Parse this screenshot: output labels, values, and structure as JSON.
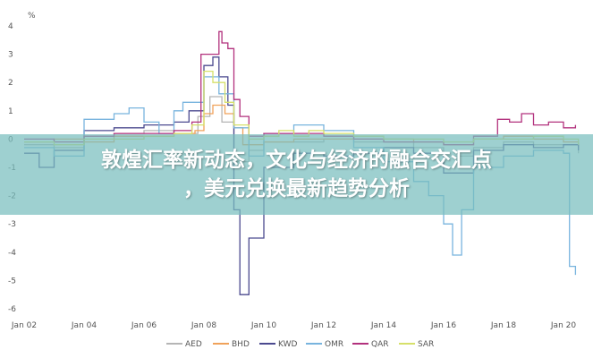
{
  "chart_data": {
    "type": "line",
    "ylabel": "%",
    "ylim": [
      -6,
      4
    ],
    "yticks": [
      4,
      3,
      2,
      1,
      0,
      -1,
      -2,
      -3,
      -4,
      -5,
      -6
    ],
    "xlim": [
      "2002-01",
      "2020-07"
    ],
    "xticks": [
      "Jan 02",
      "Jan 04",
      "Jan 06",
      "Jan 08",
      "Jan 10",
      "Jan 12",
      "Jan 14",
      "Jan 16",
      "Jan 18",
      "Jan 20"
    ],
    "xtick_years": [
      2002,
      2004,
      2006,
      2008,
      2010,
      2012,
      2014,
      2016,
      2018,
      2020
    ],
    "grid": false,
    "legend_position": "bottom",
    "series": [
      {
        "name": "AED",
        "color": "#b5b5b5",
        "x": [
          2002,
          2003,
          2004,
          2005,
          2006,
          2007,
          2007.8,
          2008.2,
          2008.6,
          2009,
          2009.5,
          2010,
          2011,
          2012,
          2013,
          2014,
          2015,
          2016,
          2017,
          2018,
          2019,
          2020,
          2020.5
        ],
        "y": [
          -0.2,
          -0.3,
          0.1,
          0.2,
          0.3,
          0.2,
          0.8,
          1.5,
          0.6,
          -0.8,
          -0.4,
          -0.1,
          -0.1,
          0,
          -0.1,
          -0.1,
          -0.3,
          -0.6,
          -0.3,
          -0.1,
          -0.2,
          -0.2,
          -0.5
        ]
      },
      {
        "name": "BHD",
        "color": "#f0a25a",
        "x": [
          2002,
          2003,
          2004,
          2005,
          2006,
          2007,
          2007.7,
          2008,
          2008.3,
          2008.7,
          2009,
          2009.3,
          2010,
          2011,
          2012,
          2013,
          2014,
          2015,
          2016,
          2017,
          2018,
          2019,
          2020,
          2020.5
        ],
        "y": [
          -0.1,
          0,
          -0.1,
          0.1,
          0.1,
          0.2,
          0.3,
          0.9,
          1.2,
          0.9,
          0.4,
          -0.2,
          -0.1,
          0,
          0,
          0,
          0,
          -0.1,
          -0.2,
          0,
          0.1,
          0,
          -0.1,
          -0.3
        ]
      },
      {
        "name": "KWD",
        "color": "#4b4a8f",
        "x": [
          2002,
          2002.5,
          2003,
          2004,
          2005,
          2006,
          2007,
          2007.5,
          2008,
          2008.3,
          2008.5,
          2008.8,
          2009,
          2009.2,
          2009.5,
          2010,
          2011,
          2012,
          2013,
          2014,
          2015,
          2016,
          2017,
          2018,
          2019,
          2020,
          2020.5
        ],
        "y": [
          -0.5,
          -1.0,
          -0.4,
          0.3,
          0.4,
          0.5,
          0.6,
          1.0,
          2.6,
          2.9,
          2.2,
          1.2,
          -2.5,
          -5.5,
          -3.5,
          -1.0,
          -0.5,
          -0.6,
          -0.5,
          -0.3,
          -0.5,
          -1.2,
          -0.4,
          -0.2,
          -0.3,
          -0.2,
          -0.4
        ]
      },
      {
        "name": "OMR",
        "color": "#78b4de",
        "x": [
          2002,
          2003,
          2004,
          2005,
          2005.5,
          2006,
          2006.5,
          2007,
          2007.3,
          2008,
          2008.5,
          2009,
          2009.5,
          2010,
          2011,
          2012,
          2013,
          2014,
          2015,
          2015.5,
          2016,
          2016.3,
          2016.6,
          2017,
          2018,
          2019,
          2020,
          2020.2,
          2020.4
        ],
        "y": [
          -0.3,
          -0.6,
          0.7,
          0.9,
          1.1,
          0.6,
          0.2,
          1.0,
          1.3,
          2.2,
          1.6,
          0.4,
          -0.6,
          0.2,
          0.5,
          0.3,
          -0.3,
          -0.8,
          -1.5,
          -2.0,
          -3.0,
          -4.1,
          -2.5,
          -1.0,
          -0.6,
          -0.4,
          -0.5,
          -4.5,
          -4.8
        ]
      },
      {
        "name": "QAR",
        "color": "#b2317d",
        "x": [
          2002,
          2003,
          2004,
          2005,
          2006,
          2007,
          2007.6,
          2007.9,
          2008.2,
          2008.5,
          2008.6,
          2008.8,
          2009,
          2009.2,
          2009.5,
          2010,
          2011,
          2012,
          2013,
          2014,
          2015,
          2016,
          2017,
          2017.8,
          2018.2,
          2018.6,
          2019,
          2019.5,
          2020,
          2020.4
        ],
        "y": [
          0,
          -0.1,
          0.1,
          0.2,
          0.2,
          0.3,
          0.6,
          3.0,
          3.0,
          3.8,
          3.4,
          3.2,
          1.4,
          0.8,
          0.1,
          0.2,
          0.2,
          0.1,
          0,
          -0.1,
          -0.1,
          -0.2,
          0.1,
          0.7,
          0.6,
          0.9,
          0.5,
          0.6,
          0.4,
          0.5
        ]
      },
      {
        "name": "SAR",
        "color": "#d6e06a",
        "x": [
          2002,
          2003,
          2004,
          2005,
          2006,
          2007,
          2007.6,
          2008,
          2008.3,
          2008.7,
          2009,
          2009.5,
          2010,
          2010.5,
          2011,
          2011.5,
          2012,
          2013,
          2014,
          2015,
          2016,
          2017,
          2018,
          2019,
          2020,
          2020.5
        ],
        "y": [
          -0.1,
          -0.2,
          0,
          0,
          0.1,
          0.2,
          0.5,
          2.4,
          2.0,
          1.3,
          0.5,
          0,
          0.1,
          0.3,
          0.1,
          0.3,
          0.2,
          0.1,
          0,
          0,
          -0.1,
          0,
          0,
          0.1,
          0,
          -0.2
        ]
      }
    ]
  },
  "banner": {
    "line1": "敦煌汇率新动态，文化与经济的融合交汇点",
    "line2": "，美元兑换最新趋势分析"
  }
}
